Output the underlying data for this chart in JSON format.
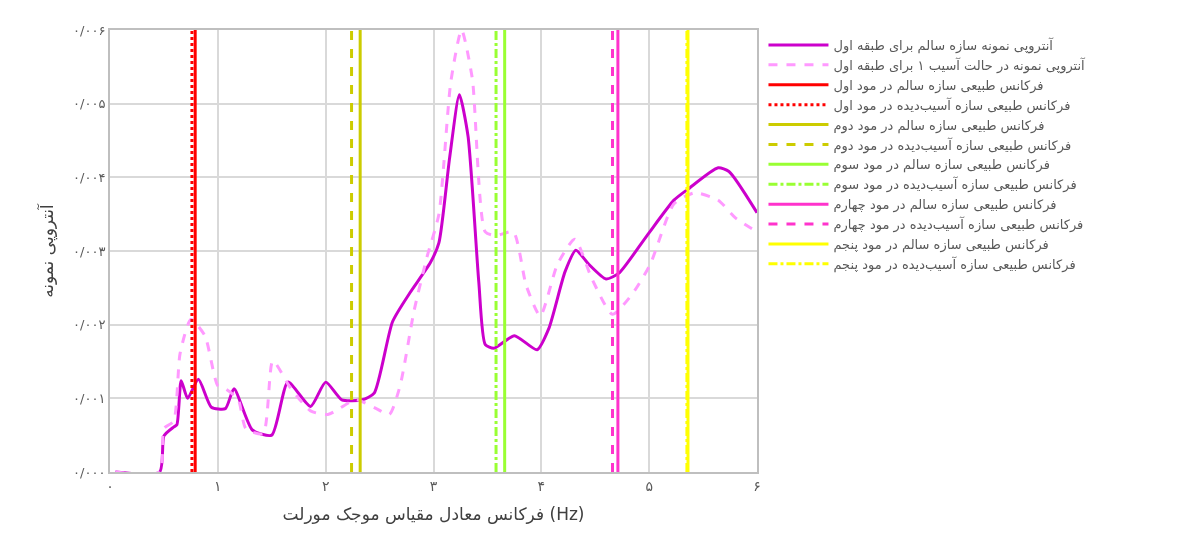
{
  "chart_data": {
    "type": "line",
    "xlabel": "فرکانس معادل مقیاس موجک مورلت (Hz)",
    "ylabel": "آنتروپی نمونه",
    "xlim": [
      0,
      6
    ],
    "ylim": [
      0,
      0.006
    ],
    "xticks": [
      {
        "value": 0,
        "label": "۰"
      },
      {
        "value": 1,
        "label": "۱"
      },
      {
        "value": 2,
        "label": "۲"
      },
      {
        "value": 3,
        "label": "۳"
      },
      {
        "value": 4,
        "label": "۴"
      },
      {
        "value": 5,
        "label": "۵"
      },
      {
        "value": 6,
        "label": "۶"
      }
    ],
    "yticks": [
      {
        "value": 0,
        "label": "۰/۰۰۰"
      },
      {
        "value": 0.001,
        "label": "۰/۰۰۱"
      },
      {
        "value": 0.002,
        "label": "۰/۰۰۲"
      },
      {
        "value": 0.003,
        "label": "۰/۰۰۳"
      },
      {
        "value": 0.004,
        "label": "۰/۰۰۴"
      },
      {
        "value": 0.005,
        "label": "۰/۰۰۵"
      },
      {
        "value": 0.006,
        "label": "۰/۰۰۶"
      }
    ],
    "grid": true,
    "legend": "right",
    "marker": "none",
    "series": [
      {
        "name": "آنتروپی نمونه سازه سالم برای طبقه اول",
        "color": "#cc00cc",
        "line_style": "solid",
        "x": [
          0.05,
          0.46,
          0.5,
          0.59,
          0.62,
          0.66,
          0.72,
          0.82,
          0.94,
          1.07,
          1.15,
          1.32,
          1.5,
          1.65,
          1.86,
          2.0,
          2.15,
          2.34,
          2.45,
          2.62,
          2.78,
          2.97,
          3.05,
          3.15,
          3.24,
          3.32,
          3.42,
          3.48,
          3.56,
          3.75,
          3.96,
          4.07,
          4.22,
          4.32,
          4.44,
          4.6,
          4.72,
          4.98,
          5.23,
          5.36,
          5.64,
          5.74,
          6.0
        ],
        "values": [
          0,
          0,
          0.00049,
          0.00061,
          0.00064,
          0.00124,
          0.001,
          0.00126,
          0.00088,
          0.00086,
          0.00113,
          0.00057,
          0.0005,
          0.00122,
          0.00089,
          0.00122,
          0.00098,
          0.00098,
          0.00107,
          0.00204,
          0.00243,
          0.00284,
          0.00311,
          0.00427,
          0.00512,
          0.00456,
          0.00258,
          0.00173,
          0.00168,
          0.00185,
          0.00166,
          0.00195,
          0.00272,
          0.00301,
          0.00282,
          0.00262,
          0.0027,
          0.00321,
          0.00369,
          0.00384,
          0.00413,
          0.00408,
          0.00352
        ]
      },
      {
        "name": "آنتروپی نمونه در حالت آسیب ۱ برای طبقه اول",
        "color": "#ff99ff",
        "line_style": "dashed",
        "x": [
          0.05,
          0.46,
          0.5,
          0.59,
          0.65,
          0.75,
          0.88,
          1.0,
          1.08,
          1.19,
          1.26,
          1.42,
          1.51,
          1.67,
          1.86,
          2.02,
          2.28,
          2.47,
          2.59,
          2.69,
          2.82,
          2.94,
          3.05,
          3.16,
          3.26,
          3.36,
          3.48,
          3.58,
          3.74,
          3.86,
          3.99,
          4.15,
          4.31,
          4.47,
          4.66,
          4.85,
          5.01,
          5.23,
          5.42,
          5.64,
          5.8,
          6.0
        ],
        "values": [
          0,
          0,
          0.00059,
          0.00069,
          0.00161,
          0.00207,
          0.00185,
          0.00117,
          0.00112,
          0.00098,
          0.00059,
          0.00052,
          0.00151,
          0.00115,
          0.00083,
          0.00078,
          0.00098,
          0.00086,
          0.00078,
          0.00117,
          0.00219,
          0.00292,
          0.0035,
          0.00529,
          0.006,
          0.00534,
          0.00326,
          0.00321,
          0.00326,
          0.00253,
          0.00212,
          0.00282,
          0.00316,
          0.00262,
          0.00214,
          0.00243,
          0.00282,
          0.00364,
          0.00379,
          0.00369,
          0.00345,
          0.00326
        ]
      },
      {
        "name": "فرکانس طبیعی سازه سالم در مود اول",
        "color": "#ff0000",
        "line_style": "solid",
        "x": [
          0.79,
          0.79
        ],
        "values": [
          0,
          0.006
        ]
      },
      {
        "name": "فرکانس طبیعی سازه آسیب‌دیده در مود اول",
        "color": "#ff0000",
        "line_style": "dotted",
        "x": [
          0.76,
          0.76
        ],
        "values": [
          0,
          0.006
        ]
      },
      {
        "name": "فرکانس طبیعی سازه سالم در مود دوم",
        "color": "#cccc00",
        "line_style": "solid",
        "x": [
          2.32,
          2.32
        ],
        "values": [
          0,
          0.006
        ]
      },
      {
        "name": "فرکانس طبیعی سازه آسیب‌دیده در مود دوم",
        "color": "#cccc00",
        "line_style": "dashed",
        "x": [
          2.24,
          2.24
        ],
        "values": [
          0,
          0.006
        ]
      },
      {
        "name": "فرکانس طبیعی سازه سالم در مود سوم",
        "color": "#99ff33",
        "line_style": "solid",
        "x": [
          3.66,
          3.66
        ],
        "values": [
          0,
          0.006
        ]
      },
      {
        "name": "فرکانس طبیعی سازه آسیب‌دیده در مود سوم",
        "color": "#99ff33",
        "line_style": "dashdot",
        "x": [
          3.58,
          3.58
        ],
        "values": [
          0,
          0.006
        ]
      },
      {
        "name": "فرکانس طبیعی سازه سالم در مود چهارم",
        "color": "#ff33cc",
        "line_style": "solid",
        "x": [
          4.71,
          4.71
        ],
        "values": [
          0,
          0.006
        ]
      },
      {
        "name": "فرکانس طبیعی سازه آسیب‌دیده در مود چهارم",
        "color": "#ff33cc",
        "line_style": "dashed",
        "x": [
          4.66,
          4.66
        ],
        "values": [
          0,
          0.006
        ]
      },
      {
        "name": "فرکانس طبیعی سازه سالم در مود پنجم",
        "color": "#ffff00",
        "line_style": "solid",
        "x": [
          5.36,
          5.36
        ],
        "values": [
          0,
          0.006
        ]
      },
      {
        "name": "فرکانس طبیعی سازه آسیب‌دیده در مود پنجم",
        "color": "#ffff00",
        "line_style": "dashdot",
        "x": [
          5.35,
          5.35
        ],
        "values": [
          0,
          0.006
        ]
      }
    ]
  }
}
